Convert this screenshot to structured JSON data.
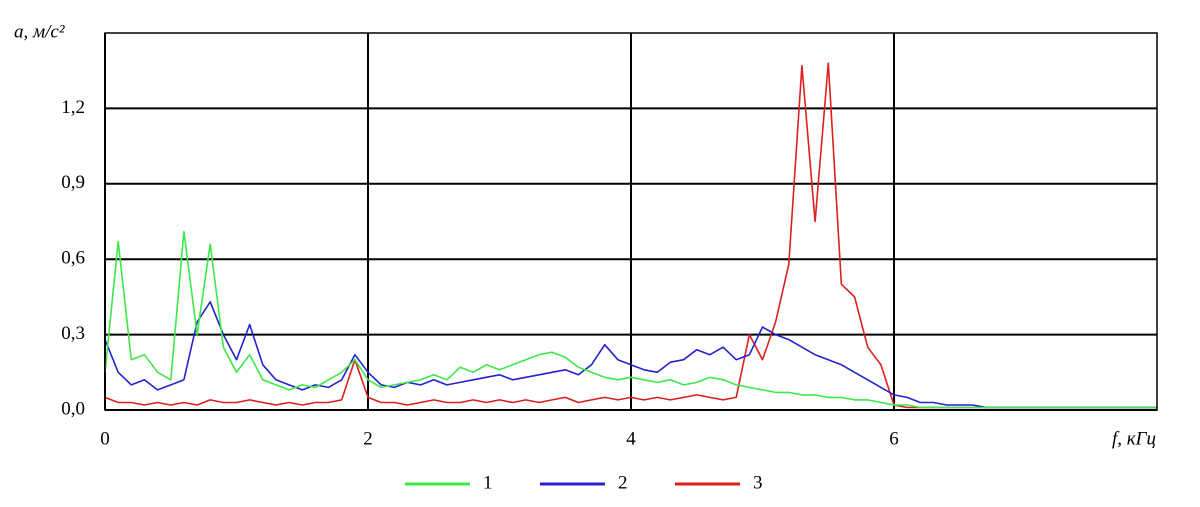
{
  "chart_data": {
    "type": "line",
    "ylabel": "a, м/с²",
    "xlabel": "f, кГц",
    "x": [
      0,
      0.1,
      0.2,
      0.3,
      0.4,
      0.5,
      0.6,
      0.7,
      0.8,
      0.9,
      1,
      1.1,
      1.2,
      1.3,
      1.4,
      1.5,
      1.6,
      1.7,
      1.8,
      1.9,
      2,
      2.1,
      2.2,
      2.3,
      2.4,
      2.5,
      2.6,
      2.7,
      2.8,
      2.9,
      3,
      3.1,
      3.2,
      3.3,
      3.4,
      3.5,
      3.6,
      3.7,
      3.8,
      3.9,
      4,
      4.1,
      4.2,
      4.3,
      4.4,
      4.5,
      4.6,
      4.7,
      4.8,
      4.9,
      5,
      5.1,
      5.2,
      5.3,
      5.4,
      5.5,
      5.6,
      5.7,
      5.8,
      5.9,
      6,
      6.1,
      6.2,
      6.3,
      6.4,
      6.5,
      6.6,
      6.7,
      6.8,
      6.9,
      7,
      7.1,
      7.2,
      7.3,
      7.4,
      7.5,
      7.6,
      7.7,
      7.8,
      7.9,
      8
    ],
    "series": [
      {
        "name": "1",
        "color": "#3ee84a",
        "values": [
          0.15,
          0.67,
          0.2,
          0.22,
          0.15,
          0.12,
          0.71,
          0.3,
          0.66,
          0.25,
          0.15,
          0.22,
          0.12,
          0.1,
          0.08,
          0.1,
          0.09,
          0.12,
          0.15,
          0.2,
          0.12,
          0.09,
          0.1,
          0.11,
          0.12,
          0.14,
          0.12,
          0.17,
          0.15,
          0.18,
          0.16,
          0.18,
          0.2,
          0.22,
          0.23,
          0.21,
          0.17,
          0.15,
          0.13,
          0.12,
          0.13,
          0.12,
          0.11,
          0.12,
          0.1,
          0.11,
          0.13,
          0.12,
          0.1,
          0.09,
          0.08,
          0.07,
          0.07,
          0.06,
          0.06,
          0.05,
          0.05,
          0.04,
          0.04,
          0.03,
          0.02,
          0.02,
          0.01,
          0.01,
          0.01,
          0.01,
          0.01,
          0.01,
          0.01,
          0.01,
          0.01,
          0.01,
          0.01,
          0.01,
          0.01,
          0.01,
          0.01,
          0.01,
          0.01,
          0.01,
          0.01
        ]
      },
      {
        "name": "2",
        "color": "#2323d0",
        "values": [
          0.28,
          0.15,
          0.1,
          0.12,
          0.08,
          0.1,
          0.12,
          0.35,
          0.43,
          0.3,
          0.2,
          0.34,
          0.18,
          0.12,
          0.1,
          0.08,
          0.1,
          0.09,
          0.12,
          0.22,
          0.15,
          0.1,
          0.09,
          0.11,
          0.1,
          0.12,
          0.1,
          0.11,
          0.12,
          0.13,
          0.14,
          0.12,
          0.13,
          0.14,
          0.15,
          0.16,
          0.14,
          0.18,
          0.26,
          0.2,
          0.18,
          0.16,
          0.15,
          0.19,
          0.2,
          0.24,
          0.22,
          0.25,
          0.2,
          0.22,
          0.33,
          0.3,
          0.28,
          0.25,
          0.22,
          0.2,
          0.18,
          0.15,
          0.12,
          0.09,
          0.06,
          0.05,
          0.03,
          0.03,
          0.02,
          0.02,
          0.02,
          0.01,
          0.01,
          0.01,
          0.01,
          0.01,
          0.01,
          0.01,
          0.01,
          0.01,
          0.01,
          0.01,
          0.01,
          0.01,
          0.01
        ]
      },
      {
        "name": "3",
        "color": "#e01e1e",
        "values": [
          0.05,
          0.03,
          0.03,
          0.02,
          0.03,
          0.02,
          0.03,
          0.02,
          0.04,
          0.03,
          0.03,
          0.04,
          0.03,
          0.02,
          0.03,
          0.02,
          0.03,
          0.03,
          0.04,
          0.2,
          0.05,
          0.03,
          0.03,
          0.02,
          0.03,
          0.04,
          0.03,
          0.03,
          0.04,
          0.03,
          0.04,
          0.03,
          0.04,
          0.03,
          0.04,
          0.05,
          0.03,
          0.04,
          0.05,
          0.04,
          0.05,
          0.04,
          0.05,
          0.04,
          0.05,
          0.06,
          0.05,
          0.04,
          0.05,
          0.3,
          0.2,
          0.35,
          0.58,
          1.37,
          0.75,
          1.38,
          0.5,
          0.45,
          0.25,
          0.18,
          0.02,
          0.01,
          0.01,
          0.01,
          0.01,
          0.01,
          0.01,
          0.01,
          0.01,
          0.01,
          0.01,
          0.01,
          0.01,
          0.01,
          0.01,
          0.01,
          0.01,
          0.01,
          0.01,
          0.01,
          0.01
        ]
      }
    ],
    "xlim": [
      0,
      8
    ],
    "xticks": [
      0,
      2,
      4,
      6
    ],
    "ylim": [
      0,
      1.5
    ],
    "yticks": [
      {
        "value": 0,
        "label": "0,0"
      },
      {
        "value": 0.3,
        "label": "0,3"
      },
      {
        "value": 0.6,
        "label": "0,6"
      },
      {
        "value": 0.9,
        "label": "0,9"
      },
      {
        "value": 1.2,
        "label": "1,2"
      }
    ],
    "grid": true,
    "legend": "bottom"
  }
}
